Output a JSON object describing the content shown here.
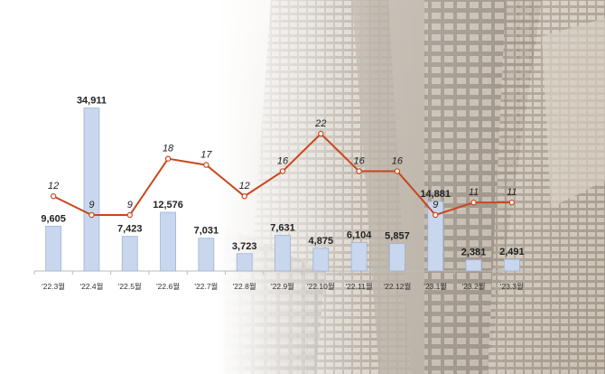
{
  "chart_data": {
    "type": "bar",
    "categories": [
      "'22.3월",
      "'22.4월",
      "'22.5월",
      "'22.6월",
      "'22.7월",
      "'22.8월",
      "'22.9월",
      "'22.10월",
      "'22.11월",
      "'22.12월",
      "'23.1월",
      "'23.2월",
      "'23.3월"
    ],
    "series": [
      {
        "type": "bar",
        "values": [
          9605,
          34911,
          7423,
          12576,
          7031,
          3723,
          7631,
          4875,
          6104,
          5857,
          14881,
          2381,
          2491
        ],
        "labels": [
          "9,605",
          "34,911",
          "7,423",
          "12,576",
          "7,031",
          "3,723",
          "7,631",
          "4,875",
          "6,104",
          "5,857",
          "14,881",
          "2,381",
          "2,491"
        ],
        "color": "#c9d7ee"
      },
      {
        "type": "line",
        "values": [
          12,
          9,
          9,
          18,
          17,
          12,
          16,
          22,
          16,
          16,
          9,
          11,
          11
        ],
        "labels": [
          "12",
          "9",
          "9",
          "18",
          "17",
          "12",
          "16",
          "22",
          "16",
          "16",
          "9",
          "11",
          "11"
        ],
        "color": "#c8471c"
      }
    ],
    "title": "",
    "xlabel": "",
    "ylabel": "",
    "legend": "none",
    "grid": false
  }
}
